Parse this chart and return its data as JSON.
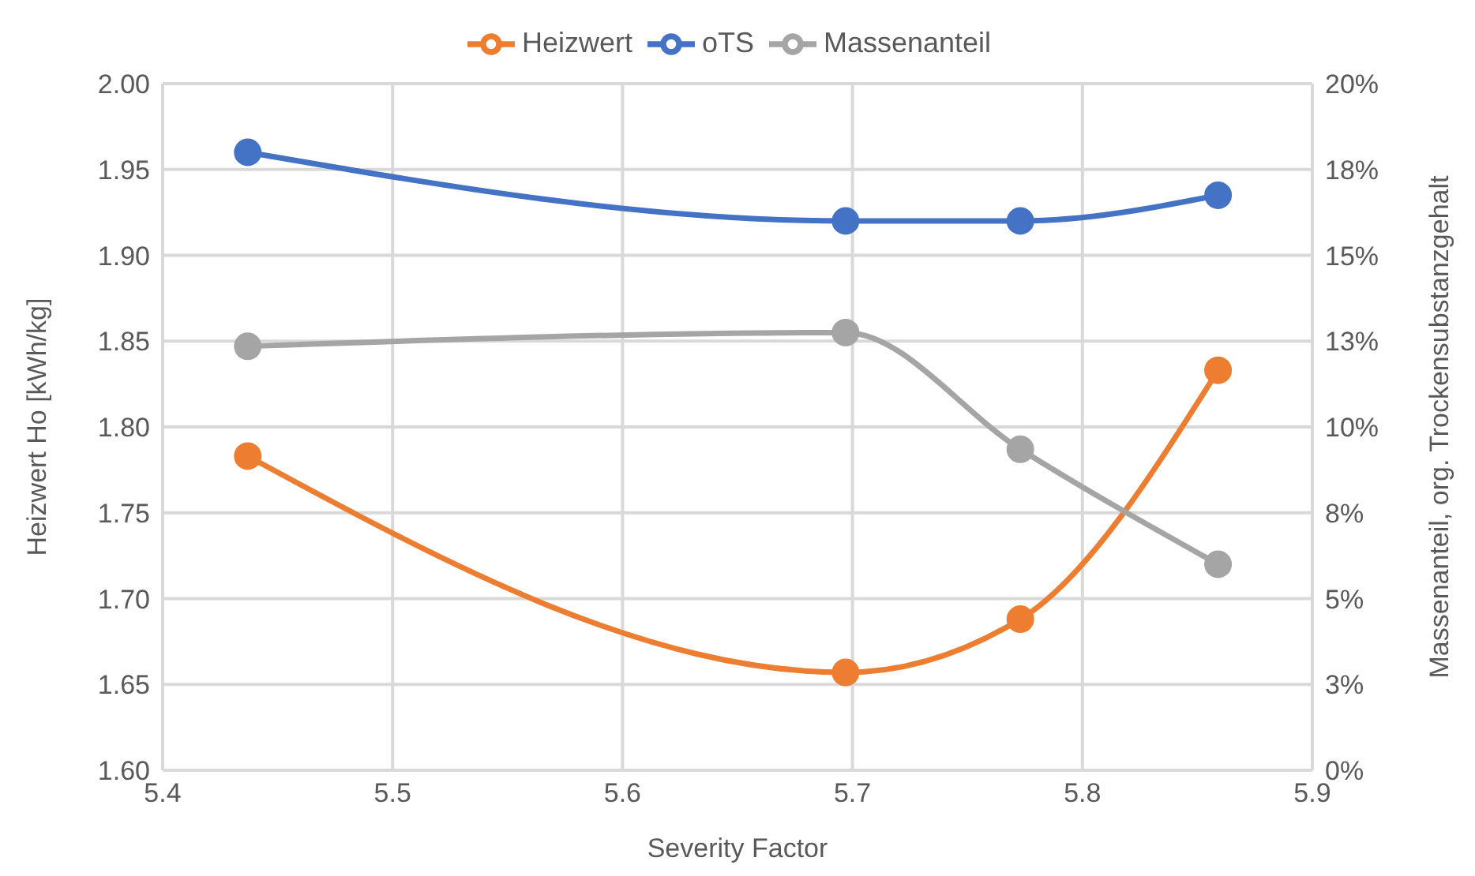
{
  "chart_data": {
    "type": "line",
    "xlabel": "Severity Factor",
    "ylabel": "Heizwert Ho [kWh/kg]",
    "y2label": "Massenanteil, org. Trockensubstanzgehalt",
    "x": [
      5.437,
      5.697,
      5.773,
      5.859
    ],
    "series": [
      {
        "name": "Heizwert",
        "color": "#ed7d31",
        "values": [
          1.783,
          1.657,
          1.688,
          1.833
        ]
      },
      {
        "name": "oTS",
        "color": "#4472c4",
        "axis": "y2",
        "values": [
          18.0,
          16.0,
          16.0,
          16.75
        ]
      },
      {
        "name": "Massenanteil",
        "color": "#a5a5a5",
        "axis": "y2",
        "values": [
          12.35,
          12.75,
          9.35,
          6.0
        ]
      }
    ],
    "xlim": [
      5.4,
      5.9
    ],
    "xticks": [
      5.4,
      5.5,
      5.6,
      5.7,
      5.8,
      5.9
    ],
    "ylim": [
      1.6,
      2.0
    ],
    "yticks": [
      {
        "value": 1.6,
        "label": "1.60"
      },
      1.65,
      {
        "value": 1.7,
        "label": "1.70"
      },
      1.75,
      {
        "value": 1.8,
        "label": "1.80"
      },
      1.85,
      {
        "value": 1.9,
        "label": "1.90"
      },
      1.95,
      {
        "value": 2.0,
        "label": "2.00"
      }
    ],
    "y2lim": [
      0,
      20
    ],
    "y2ticks": [
      {
        "value": 0,
        "label": "0%"
      },
      {
        "value": 2.5,
        "label": "3%"
      },
      {
        "value": 5,
        "label": "5%"
      },
      {
        "value": 7.5,
        "label": "8%"
      },
      {
        "value": 10,
        "label": "10%"
      },
      {
        "value": 12.5,
        "label": "13%"
      },
      {
        "value": 15,
        "label": "15%"
      },
      {
        "value": 17.5,
        "label": "18%"
      },
      {
        "value": 20,
        "label": "20%"
      }
    ],
    "grid": true,
    "legend": "top",
    "marker": "circle",
    "line_style": "solid"
  }
}
